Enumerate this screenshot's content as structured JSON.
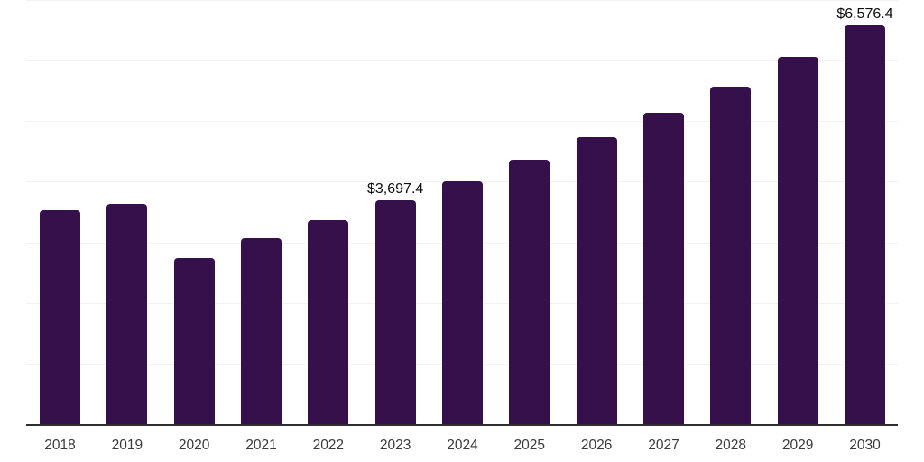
{
  "chart_data": {
    "type": "bar",
    "title": "",
    "xlabel": "",
    "ylabel": "",
    "categories": [
      "2018",
      "2019",
      "2020",
      "2021",
      "2022",
      "2023",
      "2024",
      "2025",
      "2026",
      "2027",
      "2028",
      "2029",
      "2030"
    ],
    "values": [
      3531,
      3640,
      2747,
      3073,
      3367,
      3697.4,
      4014,
      4358,
      4731,
      5137,
      5577,
      6055,
      6576.4
    ],
    "data_labels": [
      "",
      "",
      "",
      "",
      "",
      "$3,697.4",
      "",
      "",
      "",
      "",
      "",
      "",
      "$6,576.4"
    ],
    "ylim": [
      0,
      7000
    ],
    "gridline_values": [
      1000,
      2000,
      3000,
      4000,
      5000,
      6000,
      7000
    ],
    "grid": "horizontal-only",
    "legend": "none",
    "colors": {
      "bar": "#35104B",
      "gridline": "#f2f2f2",
      "axis_line": "#2e2e2e",
      "tick_label": "#3a3a3a",
      "data_label": "#0d0d0d"
    }
  }
}
